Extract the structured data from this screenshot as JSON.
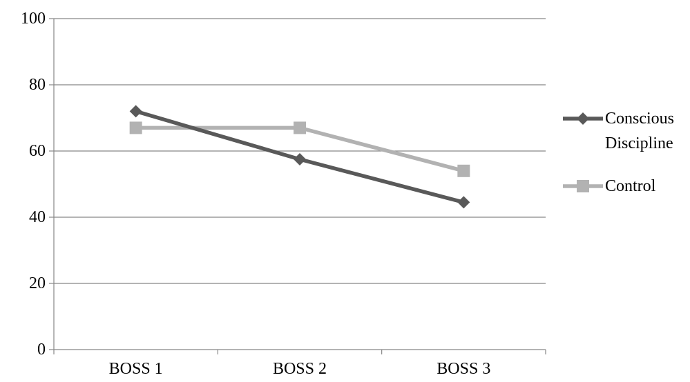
{
  "chart_data": {
    "type": "line",
    "title": "",
    "xlabel": "",
    "ylabel": "",
    "categories": [
      "BOSS 1",
      "BOSS 2",
      "BOSS 3"
    ],
    "ylim": [
      0,
      100
    ],
    "yticks": [
      "0",
      "20",
      "40",
      "60",
      "80",
      "100"
    ],
    "grid": true,
    "legend_position": "right",
    "series": [
      {
        "name": "Conscious Discipline",
        "name_lines": [
          "Conscious",
          "Discipline"
        ],
        "values": [
          72,
          57.5,
          44.5
        ],
        "color": "#595959",
        "marker": "diamond"
      },
      {
        "name": "Control",
        "name_lines": [
          "Control"
        ],
        "values": [
          67,
          67,
          54
        ],
        "color": "#b2b2b2",
        "marker": "square"
      }
    ]
  }
}
